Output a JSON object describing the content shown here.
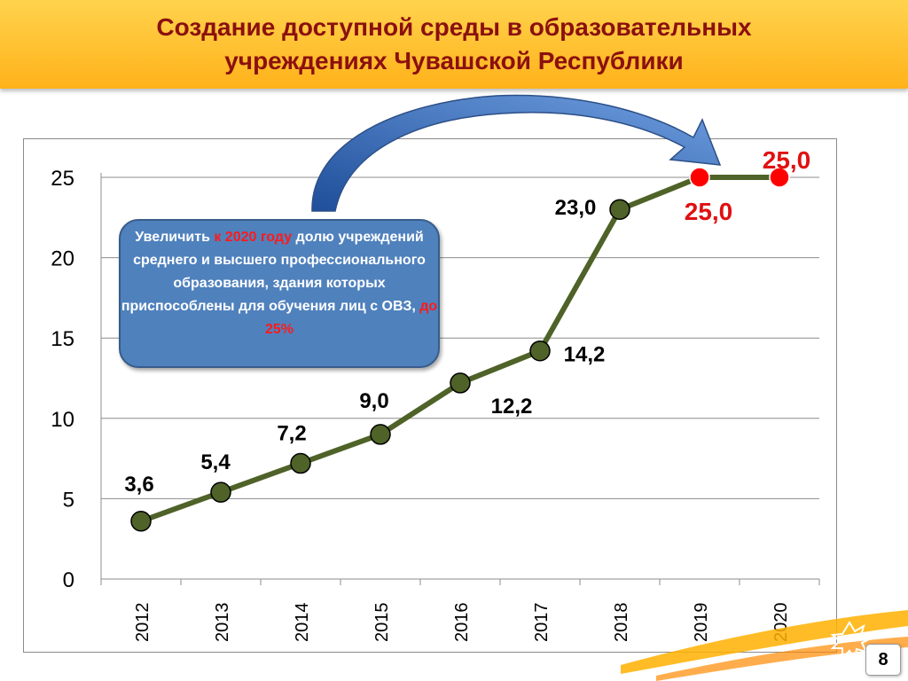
{
  "slide": {
    "title_line1": "Создание доступной среды в образовательных",
    "title_line2": "учреждениях Чувашской Республики",
    "page_number": "8"
  },
  "callout": {
    "text_a": "Увеличить ",
    "text_b": "к 2020 году",
    "text_c": " долю учреждений среднего и высшего профессионального образования, здания которых приспособлены для обучения лиц с ОВЗ, ",
    "text_d": "до 25%"
  },
  "colors": {
    "line": "#4f6228",
    "marker": "#4f6228",
    "marker_target": "#ff0000",
    "label_target": "#e01010",
    "header": "#ffc000",
    "title": "#8b1010",
    "callout_fill": "#4f81bd"
  },
  "chart_data": {
    "type": "line",
    "categories": [
      "2012",
      "2013",
      "2014",
      "2015",
      "2016",
      "2017",
      "2018",
      "2019",
      "2020"
    ],
    "values": [
      3.6,
      5.4,
      7.2,
      9.0,
      12.2,
      14.2,
      23.0,
      25.0,
      25.0
    ],
    "labels": [
      "3,6",
      "5,4",
      "7,2",
      "9,0",
      "12,2",
      "14,2",
      "23,0",
      "25,0",
      "25,0"
    ],
    "target_points": [
      7,
      8
    ],
    "ylim": [
      0,
      25
    ],
    "yticks": [
      "0",
      "5",
      "10",
      "15",
      "20",
      "25"
    ],
    "grid": true,
    "legend": "none"
  }
}
